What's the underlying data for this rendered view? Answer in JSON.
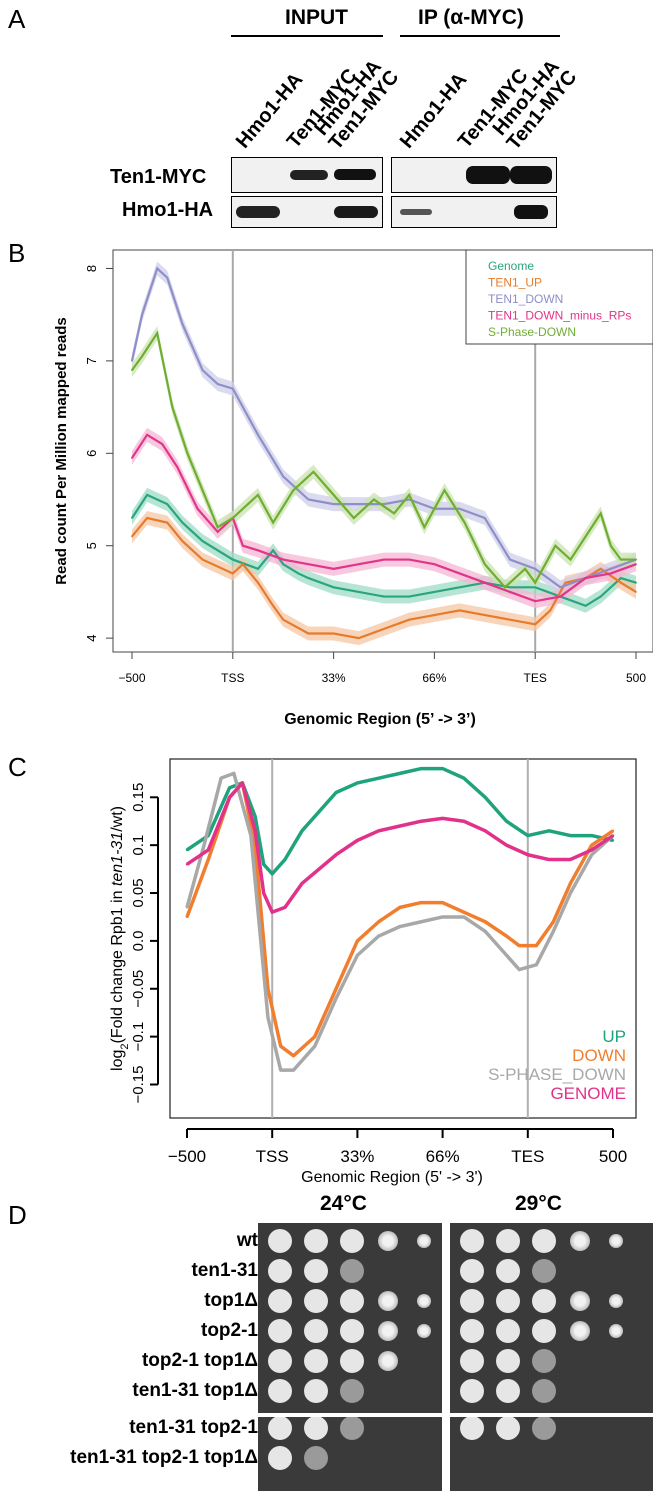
{
  "panel_a": {
    "letter": "A",
    "group_input": "INPUT",
    "group_ip": "IP (α-MYC)",
    "lanes": [
      {
        "line1": "Hmo1-HA",
        "line2": ""
      },
      {
        "line1": "Ten1-MYC",
        "line2": ""
      },
      {
        "line1": "Hmo1-HA",
        "line2": "Ten1-MYC"
      },
      {
        "line1": "Hmo1-HA",
        "line2": ""
      },
      {
        "line1": "Ten1-MYC",
        "line2": ""
      },
      {
        "line1": "Hmo1-HA",
        "line2": "Ten1-MYC"
      }
    ],
    "row_labels": [
      "Ten1-MYC",
      "Hmo1-HA"
    ]
  },
  "panel_b": {
    "letter": "B",
    "chart_data": {
      "type": "line",
      "ylabel": "Read count Per Million mapped reads",
      "xlabel": "Genomic Region (5’ -> 3’)",
      "x_tick_labels": [
        "-500",
        "TSS",
        "33%",
        "66%",
        "TES",
        "500"
      ],
      "yticks": [
        "4",
        "5",
        "6",
        "7",
        "8"
      ],
      "ylim": [
        3.85,
        8.2
      ],
      "vlines": [
        "TSS",
        "TES"
      ],
      "legend_position": "top-right",
      "series": [
        {
          "name": "Genome",
          "color": "#2aa57f",
          "band": "#9fdcc6",
          "x": [
            0,
            3,
            7,
            10,
            14,
            20,
            25,
            28,
            30,
            33,
            35,
            40,
            45,
            50,
            55,
            60,
            65,
            70,
            75,
            80,
            85,
            90,
            93,
            97,
            100
          ],
          "values": [
            5.3,
            5.55,
            5.45,
            5.25,
            5.05,
            4.85,
            4.75,
            4.95,
            4.8,
            4.7,
            4.65,
            4.55,
            4.5,
            4.45,
            4.45,
            4.5,
            4.55,
            4.6,
            4.55,
            4.55,
            4.45,
            4.35,
            4.45,
            4.65,
            4.6
          ]
        },
        {
          "name": "TEN1_UP",
          "color": "#e57b2c",
          "band": "#f5c7a3",
          "x": [
            0,
            3,
            7,
            10,
            14,
            20,
            22,
            25,
            28,
            30,
            35,
            40,
            45,
            50,
            55,
            60,
            65,
            70,
            75,
            80,
            83,
            86,
            90,
            93,
            97,
            100
          ],
          "values": [
            5.1,
            5.3,
            5.25,
            5.05,
            4.85,
            4.7,
            4.8,
            4.6,
            4.35,
            4.2,
            4.05,
            4.05,
            4.0,
            4.1,
            4.2,
            4.25,
            4.3,
            4.25,
            4.2,
            4.15,
            4.3,
            4.6,
            4.65,
            4.75,
            4.6,
            4.5
          ]
        },
        {
          "name": "TEN1_DOWN",
          "color": "#8f8fc8",
          "band": "#cfcfea",
          "x": [
            0,
            2,
            5,
            7,
            10,
            14,
            17,
            20,
            25,
            30,
            35,
            40,
            45,
            50,
            55,
            60,
            65,
            70,
            75,
            80,
            85,
            90,
            95,
            100
          ],
          "values": [
            7.0,
            7.5,
            8.0,
            7.9,
            7.4,
            6.9,
            6.75,
            6.7,
            6.2,
            5.75,
            5.5,
            5.45,
            5.45,
            5.45,
            5.5,
            5.4,
            5.4,
            5.3,
            4.85,
            4.75,
            4.55,
            4.65,
            4.75,
            4.85
          ]
        },
        {
          "name": "TEN1_DOWN_minus_RPs",
          "color": "#e0358a",
          "band": "#f5b6d3",
          "x": [
            0,
            3,
            6,
            9,
            13,
            17,
            20,
            22,
            25,
            30,
            35,
            40,
            45,
            50,
            55,
            60,
            65,
            70,
            75,
            80,
            85,
            90,
            95,
            100
          ],
          "values": [
            5.95,
            6.2,
            6.1,
            5.85,
            5.4,
            5.15,
            5.3,
            5.0,
            4.95,
            4.85,
            4.8,
            4.75,
            4.8,
            4.85,
            4.85,
            4.8,
            4.7,
            4.6,
            4.5,
            4.4,
            4.45,
            4.65,
            4.7,
            4.8
          ]
        },
        {
          "name": "S-Phase-DOWN",
          "color": "#6fae30",
          "band": "#cbe3b0",
          "x": [
            0,
            2,
            5,
            8,
            11,
            14,
            17,
            20,
            25,
            28,
            32,
            36,
            40,
            44,
            48,
            52,
            55,
            58,
            62,
            66,
            70,
            74,
            78,
            80,
            84,
            87,
            90,
            93,
            95,
            97,
            100
          ],
          "values": [
            6.9,
            7.05,
            7.3,
            6.5,
            6.0,
            5.6,
            5.2,
            5.3,
            5.55,
            5.25,
            5.6,
            5.8,
            5.55,
            5.3,
            5.5,
            5.35,
            5.55,
            5.2,
            5.6,
            5.25,
            4.8,
            4.55,
            4.75,
            4.6,
            5.0,
            4.85,
            5.1,
            5.35,
            5.0,
            4.85,
            4.85
          ]
        }
      ]
    }
  },
  "panel_c": {
    "letter": "C",
    "chart_data": {
      "type": "line",
      "ylabel_main": "log",
      "ylabel_sub": "2",
      "ylabel_rest": "(Fold change Rpb1 in ",
      "ylabel_italic": "ten1-31",
      "ylabel_end": "/wt)",
      "xlabel": "Genomic Region (5' -> 3')",
      "x_tick_labels": [
        "-500",
        "TSS",
        "33%",
        "66%",
        "TES",
        "500"
      ],
      "yticks": [
        "-0.15",
        "-0.1",
        "-0.05",
        "0.0",
        "0.05",
        "0.1",
        "0.15"
      ],
      "ylim": [
        -0.185,
        0.19
      ],
      "vlines": [
        "TSS",
        "TES"
      ],
      "legend_position": "bottom-right",
      "series": [
        {
          "name": "UP",
          "color": "#1fa37d",
          "x": [
            0,
            5,
            10,
            13,
            16,
            18,
            20,
            23,
            27,
            35,
            40,
            45,
            50,
            55,
            60,
            65,
            70,
            75,
            80,
            85,
            90,
            95,
            100
          ],
          "values": [
            0.095,
            0.11,
            0.16,
            0.165,
            0.13,
            0.08,
            0.07,
            0.085,
            0.115,
            0.155,
            0.165,
            0.17,
            0.175,
            0.18,
            0.18,
            0.17,
            0.15,
            0.125,
            0.11,
            0.115,
            0.11,
            0.11,
            0.105
          ]
        },
        {
          "name": "DOWN",
          "color": "#f07e2e",
          "x": [
            0,
            5,
            10,
            13,
            16,
            19,
            22,
            25,
            30,
            35,
            40,
            45,
            50,
            55,
            60,
            65,
            70,
            75,
            78,
            82,
            86,
            90,
            95,
            100
          ],
          "values": [
            0.025,
            0.085,
            0.15,
            0.165,
            0.1,
            -0.05,
            -0.11,
            -0.12,
            -0.1,
            -0.05,
            0.0,
            0.02,
            0.035,
            0.04,
            0.04,
            0.03,
            0.02,
            0.005,
            -0.005,
            -0.005,
            0.02,
            0.06,
            0.1,
            0.115
          ]
        },
        {
          "name": "S-PHASE_DOWN",
          "color": "#a8a8a8",
          "x": [
            0,
            4,
            8,
            11,
            15,
            19,
            22,
            25,
            30,
            35,
            40,
            45,
            50,
            55,
            60,
            65,
            70,
            75,
            78,
            82,
            86,
            90,
            95,
            100
          ],
          "values": [
            0.035,
            0.1,
            0.17,
            0.175,
            0.11,
            -0.08,
            -0.135,
            -0.135,
            -0.11,
            -0.06,
            -0.015,
            0.005,
            0.015,
            0.02,
            0.025,
            0.025,
            0.01,
            -0.015,
            -0.03,
            -0.025,
            0.01,
            0.05,
            0.09,
            0.11
          ]
        },
        {
          "name": "GENOME",
          "color": "#e2318a",
          "x": [
            0,
            5,
            10,
            13,
            16,
            18,
            20,
            23,
            27,
            35,
            40,
            45,
            50,
            55,
            60,
            65,
            70,
            75,
            80,
            85,
            90,
            95,
            100
          ],
          "values": [
            0.08,
            0.095,
            0.15,
            0.165,
            0.115,
            0.05,
            0.03,
            0.035,
            0.06,
            0.09,
            0.105,
            0.115,
            0.12,
            0.125,
            0.128,
            0.125,
            0.115,
            0.1,
            0.09,
            0.085,
            0.085,
            0.095,
            0.11
          ]
        }
      ]
    }
  },
  "panel_d": {
    "letter": "D",
    "temps": [
      "24°C",
      "29°C"
    ],
    "strains": [
      "wt",
      "ten1-31",
      "top1Δ",
      "top2-1",
      "top2-1 top1Δ",
      "ten1-31 top1Δ",
      "ten1-31 top2-1",
      "ten1-31 top2-1 top1Δ"
    ],
    "growth_24": [
      5,
      3,
      5,
      5,
      4,
      3,
      3,
      2
    ],
    "growth_29": [
      5,
      3,
      5,
      5,
      3,
      3,
      3,
      0
    ]
  }
}
